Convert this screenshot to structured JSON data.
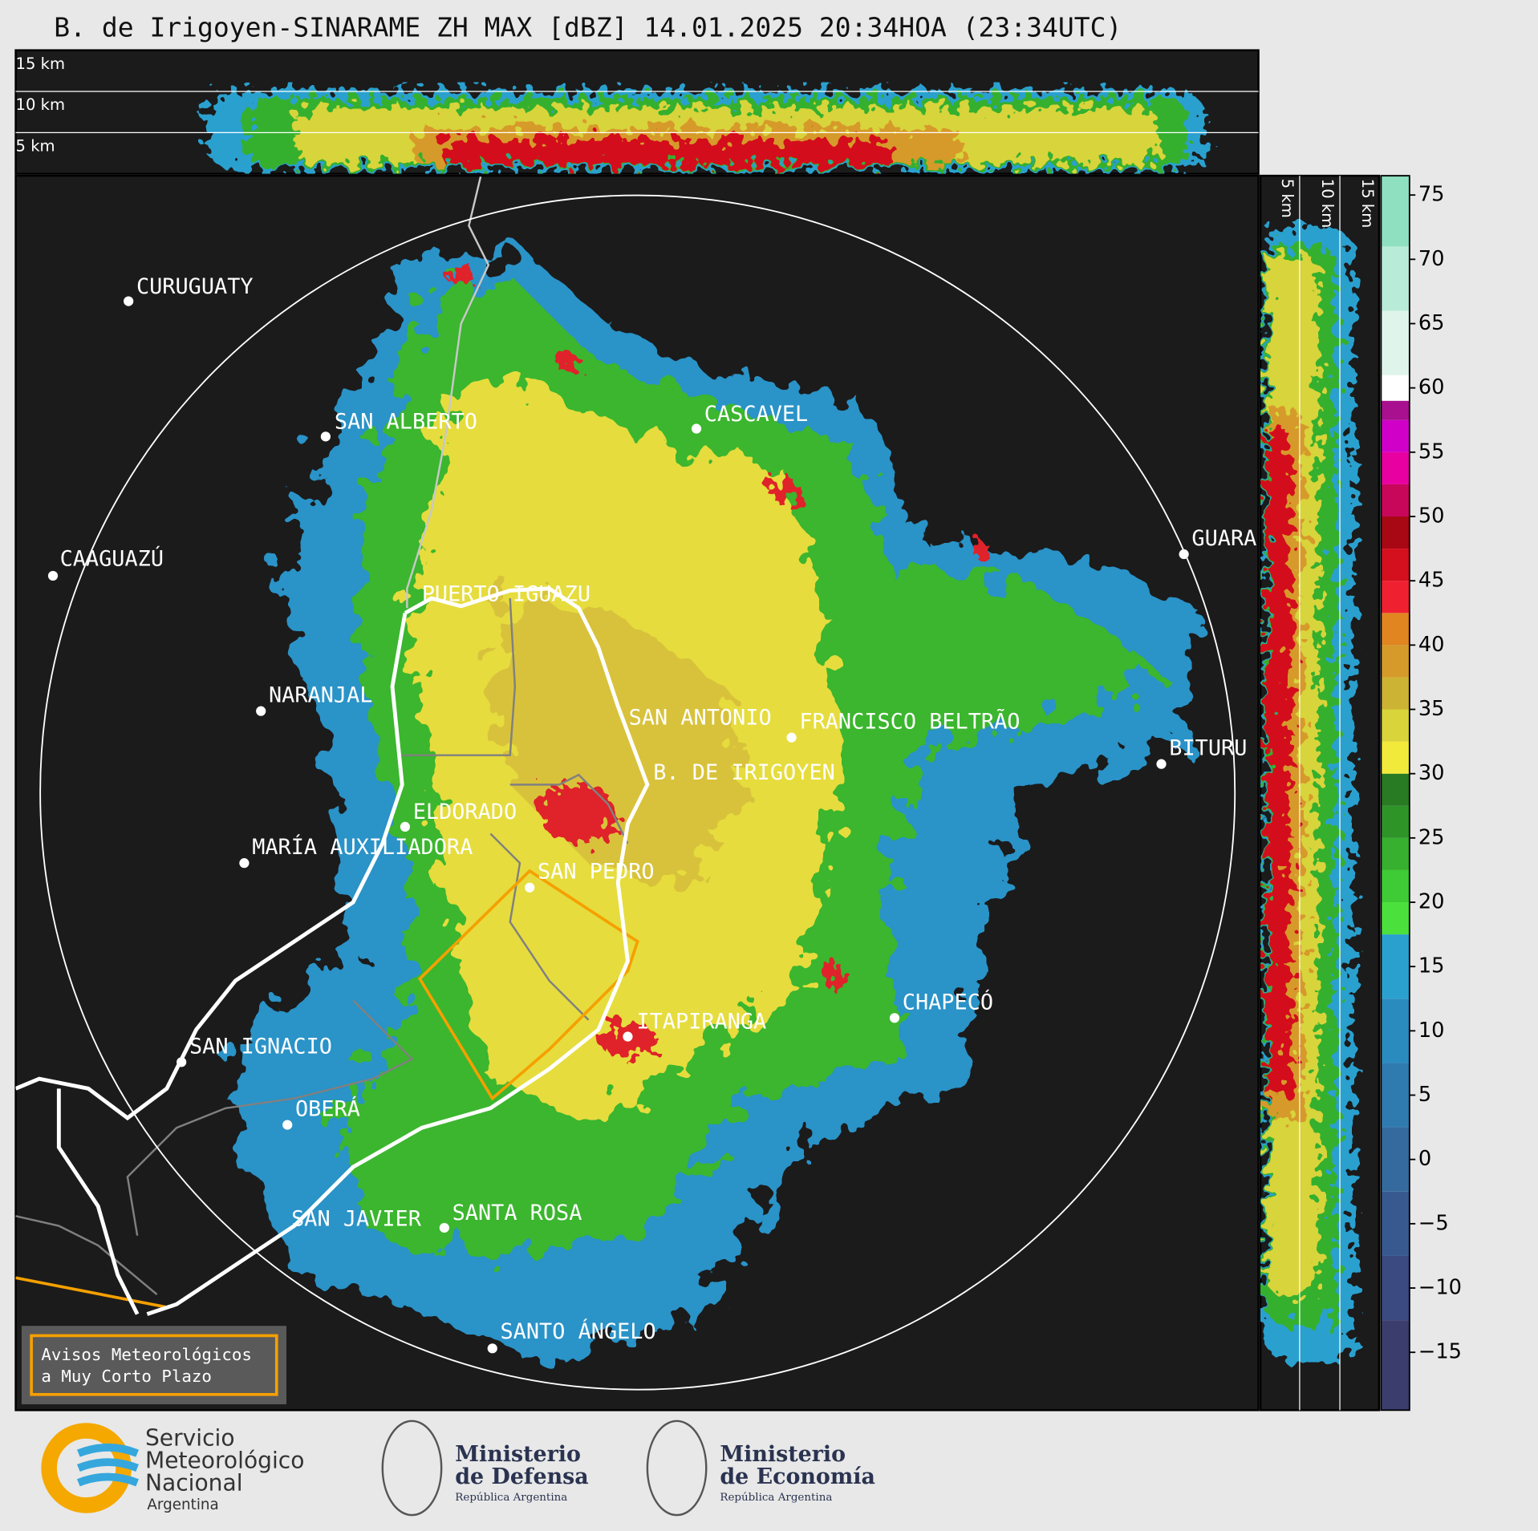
{
  "header": {
    "title": "B. de Irigoyen-SINARAME ZH MAX [dBZ] 14.01.2025 20:34HOA (23:34UTC)"
  },
  "top_panel": {
    "labels": [
      "15 km",
      "10 km",
      "5 km"
    ]
  },
  "side_panel": {
    "labels": [
      "5 km",
      "10 km",
      "15 km"
    ]
  },
  "cities": [
    "CURUGUATY",
    "SAN ALBERTO",
    "CASCAVEL",
    "CAAGUAZÚ",
    "GUARA",
    "PUERTO IGUAZU",
    "NARANJAL",
    "SAN ANTONIO",
    "FRANCISCO BELTRÃO",
    "BITURU",
    "B. DE IRIGOYEN",
    "ELDORADO",
    "MARÍA AUXILIADORA",
    "SAN PEDRO",
    "CHAPECÓ",
    "ITAPIRANGA",
    "SAN IGNACIO",
    "OBERÁ",
    "SAN JAVIER",
    "SANTA ROSA",
    "SANTO ÁNGELO"
  ],
  "legend": {
    "lines": [
      "Avisos Meteorológicos",
      "a Muy Corto Plazo"
    ]
  },
  "colorbar": {
    "ylim": [
      -19.5,
      76.5
    ],
    "yticks": [
      {
        "value": -15,
        "label": "−15"
      },
      {
        "value": -10,
        "label": "−10"
      },
      {
        "value": -5,
        "label": "−5"
      },
      0,
      5,
      10,
      15,
      20,
      25,
      30,
      35,
      40,
      45,
      50,
      55,
      60,
      65,
      70,
      75
    ],
    "bands": [
      {
        "from": -19.5,
        "to": -12.5,
        "color": "#3b3e6c"
      },
      {
        "from": -12.5,
        "to": -7.5,
        "color": "#3b4a80"
      },
      {
        "from": -7.5,
        "to": -2.5,
        "color": "#38598f"
      },
      {
        "from": -2.5,
        "to": 2.5,
        "color": "#356a9f"
      },
      {
        "from": 2.5,
        "to": 7.5,
        "color": "#2f7bb0"
      },
      {
        "from": 7.5,
        "to": 12.5,
        "color": "#2a8bbf"
      },
      {
        "from": 12.5,
        "to": 17.5,
        "color": "#2aa0cf"
      },
      {
        "from": 17.5,
        "to": 20,
        "color": "#4be03c"
      },
      {
        "from": 20,
        "to": 22.5,
        "color": "#3ecb35"
      },
      {
        "from": 22.5,
        "to": 25,
        "color": "#36b02e"
      },
      {
        "from": 25,
        "to": 27.5,
        "color": "#2e9428"
      },
      {
        "from": 27.5,
        "to": 30,
        "color": "#287a23"
      },
      {
        "from": 30,
        "to": 32.5,
        "color": "#f2ea3a"
      },
      {
        "from": 32.5,
        "to": 35,
        "color": "#d8d43a"
      },
      {
        "from": 35,
        "to": 37.5,
        "color": "#cdb333"
      },
      {
        "from": 37.5,
        "to": 40,
        "color": "#d69a2a"
      },
      {
        "from": 40,
        "to": 42.5,
        "color": "#e08520"
      },
      {
        "from": 42.5,
        "to": 45,
        "color": "#ef2030"
      },
      {
        "from": 45,
        "to": 47.5,
        "color": "#d40f1e"
      },
      {
        "from": 47.5,
        "to": 50,
        "color": "#a80814"
      },
      {
        "from": 50,
        "to": 52.5,
        "color": "#c8075a"
      },
      {
        "from": 52.5,
        "to": 55,
        "color": "#e800a0"
      },
      {
        "from": 55,
        "to": 57.5,
        "color": "#d000c8"
      },
      {
        "from": 57.5,
        "to": 59,
        "color": "#a8108f"
      },
      {
        "from": 59,
        "to": 61,
        "color": "#ffffff"
      },
      {
        "from": 61,
        "to": 66,
        "color": "#dff5ec"
      },
      {
        "from": 66,
        "to": 71,
        "color": "#b8ecd8"
      },
      {
        "from": 71,
        "to": 76.5,
        "color": "#8ee0c0"
      }
    ]
  },
  "footer": {
    "smn": [
      "Servicio",
      "Meteorológico",
      "Nacional",
      "Argentina"
    ],
    "defensa": [
      "Ministerio",
      "de Defensa",
      "República Argentina"
    ],
    "economia": [
      "Ministerio",
      "de Economía",
      "República Argentina"
    ]
  }
}
